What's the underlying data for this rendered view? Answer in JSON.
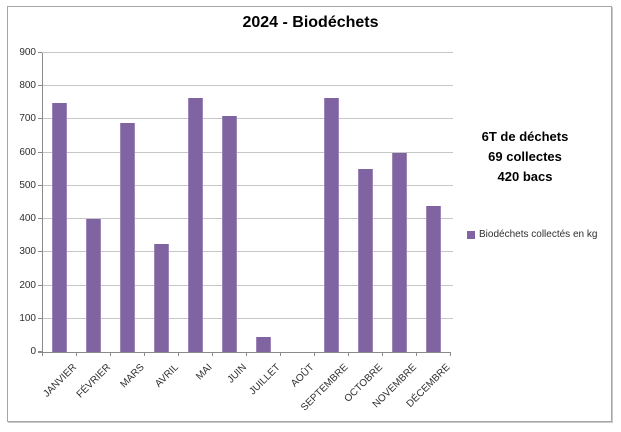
{
  "chart_data": {
    "type": "bar",
    "title": "2024 - Biodéchets",
    "categories": [
      "JANVIER",
      "FÉVRIER",
      "MARS",
      "AVRIL",
      "MAI",
      "JUIN",
      "JUILLET",
      "AOÛT",
      "SEPTEMBRE",
      "OCTOBRE",
      "NOVEMBRE",
      "DÉCEMBRE"
    ],
    "values": [
      750,
      400,
      690,
      325,
      765,
      710,
      45,
      0,
      765,
      550,
      600,
      440
    ],
    "series_name": "Biodéchets collectés en kg",
    "xlabel": "",
    "ylabel": "",
    "ylim": [
      0,
      900
    ],
    "ytick_step": 100,
    "grid": true,
    "legend_position": "right",
    "bar_color": "#8064A2"
  },
  "annotation": {
    "lines": [
      "6T de déchets",
      "69 collectes",
      "420 bacs"
    ]
  },
  "legend": {
    "label": "Biodéchets collectés en kg",
    "marker_color": "#8064A2"
  },
  "colors": {
    "bar": "#8064A2",
    "bar_edge": "#9b86b7",
    "grid": "#c6c6c6",
    "axis": "#8a8a8a",
    "frame": "#a6a6a6",
    "text": "#2e2e2e"
  }
}
